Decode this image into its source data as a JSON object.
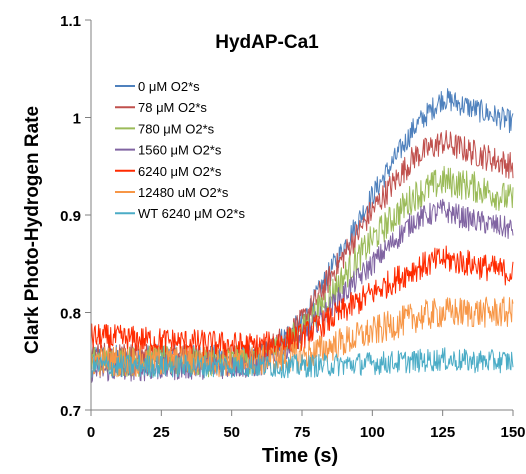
{
  "chart_data": {
    "type": "line",
    "title": "HydAP-Ca1",
    "xlabel": "Time (s)",
    "ylabel": "Clark Photo-Hydrogen Rate",
    "xlim": [
      0,
      150
    ],
    "ylim": [
      0.7,
      1.1
    ],
    "x_ticks": [
      0,
      25,
      50,
      75,
      100,
      125,
      150
    ],
    "y_ticks": [
      0.7,
      0.8,
      0.9,
      1.0,
      1.1
    ],
    "x_tick_labels": [
      "0",
      "25",
      "50",
      "75",
      "100",
      "125",
      "150"
    ],
    "y_tick_labels": [
      "0.7",
      "0.8",
      "0.9",
      "1",
      "1.1"
    ],
    "grid": false,
    "legend_position": "upper-left",
    "noise_note_free": true,
    "series": [
      {
        "name": "0 μM O2*s",
        "color": "#4f81bd",
        "x": [
          0,
          60,
          75,
          100,
          115,
          125,
          135,
          150
        ],
        "y": [
          0.755,
          0.755,
          0.79,
          0.92,
          0.99,
          1.02,
          1.01,
          0.995
        ]
      },
      {
        "name": "78 μM O2*s",
        "color": "#c0504d",
        "x": [
          0,
          60,
          75,
          100,
          115,
          125,
          135,
          150
        ],
        "y": [
          0.755,
          0.755,
          0.79,
          0.905,
          0.96,
          0.975,
          0.965,
          0.95
        ]
      },
      {
        "name": "780 μM O2*s",
        "color": "#9bbb59",
        "x": [
          0,
          60,
          75,
          100,
          115,
          125,
          135,
          150
        ],
        "y": [
          0.75,
          0.75,
          0.78,
          0.875,
          0.92,
          0.935,
          0.93,
          0.915
        ]
      },
      {
        "name": "1560 μM O2*s",
        "color": "#8064a2",
        "x": [
          0,
          60,
          75,
          100,
          115,
          125,
          135,
          150
        ],
        "y": [
          0.74,
          0.745,
          0.775,
          0.85,
          0.895,
          0.905,
          0.895,
          0.885
        ]
      },
      {
        "name": "6240 μM O2*s",
        "color": "#ff2a00",
        "x": [
          0,
          60,
          75,
          100,
          115,
          125,
          135,
          150
        ],
        "y": [
          0.775,
          0.765,
          0.775,
          0.82,
          0.845,
          0.855,
          0.85,
          0.84
        ]
      },
      {
        "name": "12480 uM O2*s",
        "color": "#f79646",
        "x": [
          0,
          60,
          75,
          100,
          115,
          125,
          135,
          150
        ],
        "y": [
          0.75,
          0.75,
          0.755,
          0.78,
          0.795,
          0.8,
          0.8,
          0.8
        ]
      },
      {
        "name": "WT 6240 μM O2*s",
        "color": "#4bacc6",
        "x": [
          0,
          60,
          75,
          100,
          115,
          125,
          135,
          150
        ],
        "y": [
          0.745,
          0.745,
          0.745,
          0.748,
          0.75,
          0.752,
          0.75,
          0.75
        ]
      }
    ]
  }
}
